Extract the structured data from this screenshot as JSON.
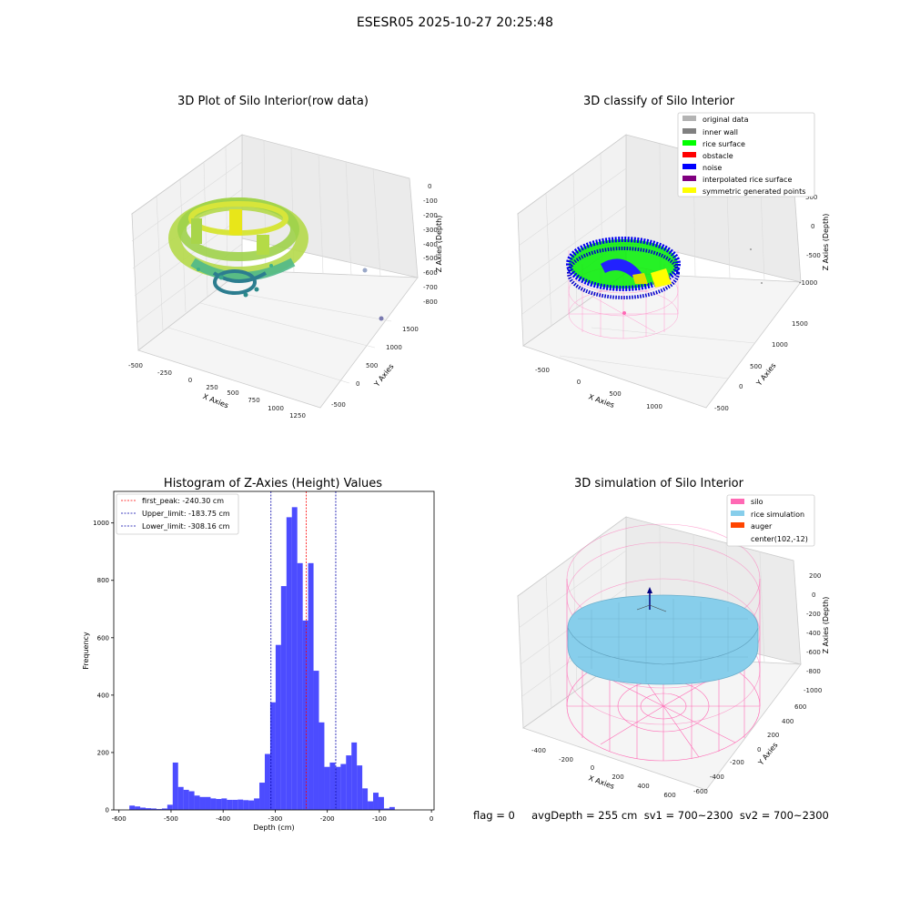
{
  "figure": {
    "suptitle": "ESESR05 2025-10-27 20:25:48",
    "footer": "flag = 0     avgDepth = 255 cm  sv1 = 700~2300  sv2 = 700~2300"
  },
  "panels": {
    "raw": {
      "title": "3D Plot of Silo Interior(row data)",
      "xlabel": "X Axies",
      "ylabel": "Y Axies",
      "zlabel": "Z Axies (Depth)",
      "xticks": [
        "-500",
        "-250",
        "0",
        "250",
        "500",
        "750",
        "1000",
        "1250"
      ],
      "yticks": [
        "-500",
        "0",
        "500",
        "1000",
        "1500"
      ],
      "zticks": [
        "0",
        "-100",
        "-200",
        "-300",
        "-400",
        "-500",
        "-600",
        "-700",
        "-800"
      ]
    },
    "classify": {
      "title": "3D classify of Silo Interior",
      "xlabel": "X Axies",
      "ylabel": "Y Axies",
      "zlabel": "Z Axies (Depth)",
      "xticks": [
        "-500",
        "0",
        "500",
        "1000"
      ],
      "yticks": [
        "-500",
        "0",
        "500",
        "1000",
        "1500"
      ],
      "zticks": [
        "500",
        "0",
        "-500",
        "-1000"
      ],
      "legend": [
        {
          "label": "original data",
          "color": "#b3b3b3"
        },
        {
          "label": "inner wall",
          "color": "#808080"
        },
        {
          "label": "rice surface",
          "color": "#00ff00"
        },
        {
          "label": "obstacle",
          "color": "#ff0000"
        },
        {
          "label": "noise",
          "color": "#0000ff"
        },
        {
          "label": "interpolated rice surface",
          "color": "#800080"
        },
        {
          "label": "symmetric generated points",
          "color": "#ffff00"
        }
      ]
    },
    "simulation": {
      "title": "3D simulation of Silo Interior",
      "xlabel": "X Axies",
      "ylabel": "Y Axies",
      "zlabel": "Z Axies (Depth)",
      "xticks": [
        "-400",
        "-200",
        "0",
        "200",
        "400",
        "600"
      ],
      "yticks": [
        "-600",
        "-400",
        "-200",
        "0",
        "200",
        "400",
        "600"
      ],
      "zticks": [
        "200",
        "0",
        "-200",
        "-400",
        "-600",
        "-800",
        "-1000"
      ],
      "legend": [
        {
          "label": "silo",
          "color": "#ff69b4"
        },
        {
          "label": "rice simulation",
          "color": "#87ceeb"
        },
        {
          "label": "auger",
          "color": "#ff4500"
        },
        {
          "label": "center(102,-12)",
          "color": "none"
        }
      ]
    }
  },
  "chart_data": {
    "type": "bar",
    "title": "Histogram of Z-Axies (Height) Values",
    "xlabel": "Depth (cm)",
    "ylabel": "Frequency",
    "xlim": [
      -610,
      5
    ],
    "ylim": [
      0,
      1110
    ],
    "xticks": [
      -600,
      -500,
      -400,
      -300,
      -200,
      -100,
      0
    ],
    "yticks": [
      0,
      200,
      400,
      600,
      800,
      1000
    ],
    "bin_start": -580,
    "bin_width": 10.4,
    "values": [
      15,
      12,
      8,
      6,
      5,
      3,
      5,
      18,
      165,
      80,
      70,
      65,
      50,
      45,
      45,
      40,
      38,
      40,
      35,
      35,
      36,
      34,
      33,
      40,
      95,
      195,
      375,
      575,
      780,
      1020,
      1055,
      860,
      660,
      860,
      485,
      305,
      150,
      165,
      150,
      160,
      190,
      235,
      155,
      75,
      30,
      60,
      45,
      5,
      10
    ],
    "color": "#0000ff",
    "vlines": [
      {
        "label": "first_peak: -240.30 cm",
        "x": -240.3,
        "color": "#ff0000"
      },
      {
        "label": "Upper_limit: -183.75 cm",
        "x": -183.75,
        "color": "#0000aa"
      },
      {
        "label": "Lower_limit: -308.16 cm",
        "x": -308.16,
        "color": "#0000aa"
      }
    ],
    "legend_position": "upper-left"
  }
}
